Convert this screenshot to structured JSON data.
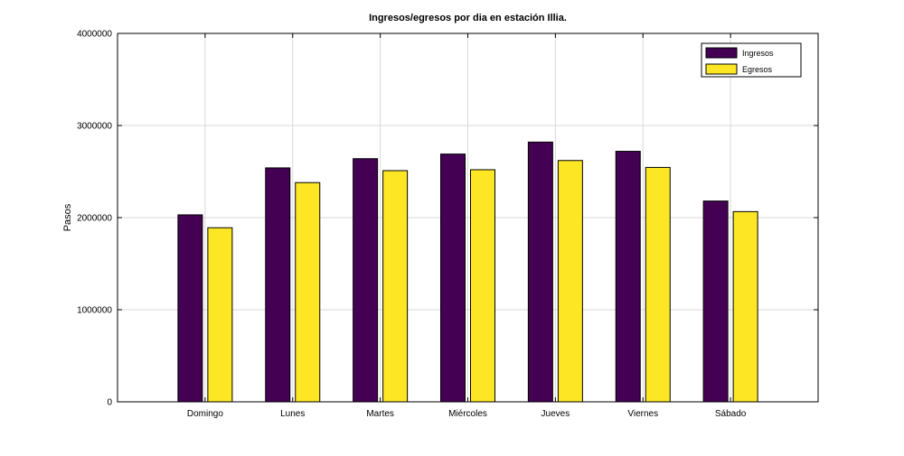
{
  "chart_data": {
    "type": "bar",
    "title": "Ingresos/egresos por dia en estación Illia.",
    "xlabel": "",
    "ylabel": "Pasos",
    "categories": [
      "Domingo",
      "Lunes",
      "Martes",
      "Miércoles",
      "Jueves",
      "Viernes",
      "Sábado"
    ],
    "series": [
      {
        "name": "Ingresos",
        "color": "#440154",
        "values": [
          2030000,
          2540000,
          2640000,
          2690000,
          2820000,
          2720000,
          2180000
        ]
      },
      {
        "name": "Egresos",
        "color": "#fde725",
        "values": [
          1890000,
          2380000,
          2510000,
          2520000,
          2620000,
          2545000,
          2065000
        ]
      }
    ],
    "ylim": [
      0,
      4000000
    ],
    "yticks": [
      "0",
      "1000000",
      "2000000",
      "3000000",
      "4000000"
    ],
    "grid": true,
    "legend_position": "top-right"
  }
}
